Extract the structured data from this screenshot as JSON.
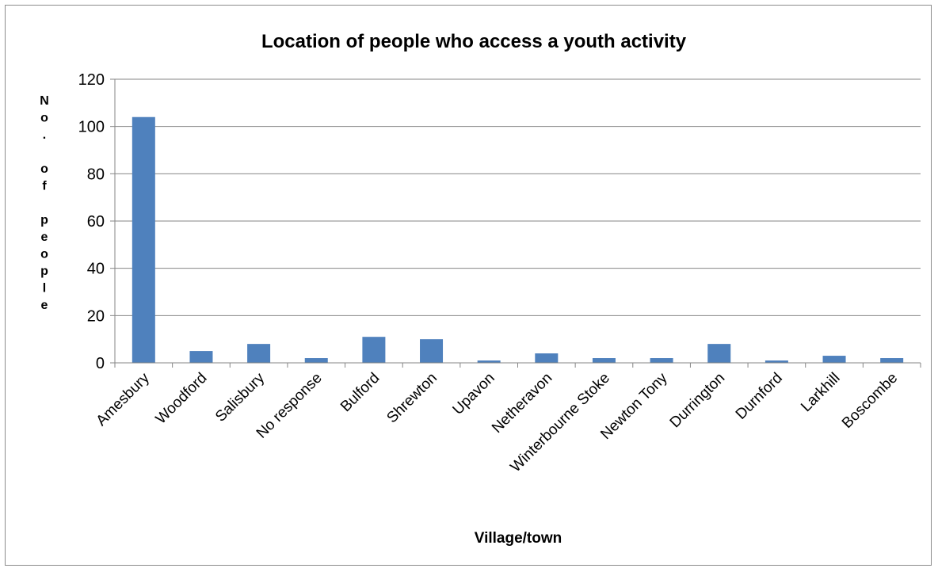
{
  "chart_data": {
    "type": "bar",
    "title": "Location of people who access a youth activity",
    "xlabel": "Village/town",
    "ylabel": "No. of people",
    "categories": [
      "Amesbury",
      "Woodford",
      "Salisbury",
      "No response",
      "Bulford",
      "Shrewton",
      "Upavon",
      "Netheravon",
      "Winterbourne Stoke",
      "Newton Tony",
      "Durrington",
      "Durnford",
      "Larkhill",
      "Boscombe"
    ],
    "values": [
      104,
      5,
      8,
      2,
      11,
      10,
      1,
      4,
      2,
      2,
      8,
      1,
      3,
      2
    ],
    "ylim": [
      0,
      120
    ],
    "yticks": [
      0,
      20,
      40,
      60,
      80,
      100,
      120
    ],
    "grid": true,
    "legend": "none",
    "bar_color": "#4f81bd",
    "grid_color": "#868686"
  }
}
